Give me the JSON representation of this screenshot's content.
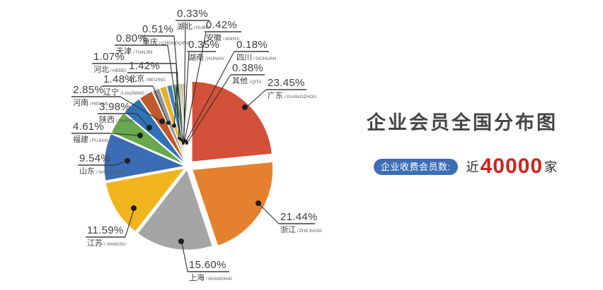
{
  "title": "企业会员全国分布图",
  "badge": {
    "label": "企业收费会员数:",
    "prefix": "近",
    "count": "40000",
    "suffix": "家",
    "badge_color": "#3d6eb5",
    "count_color": "#cc231b"
  },
  "chart_data": {
    "type": "pie",
    "title": "企业会员全国分布图",
    "unit": "%",
    "direction": "clockwise",
    "start_angle": "12-o-clock",
    "legend_position": "callout-labels",
    "series": [
      {
        "name": "广东",
        "pinyin": "GUANGZHOU",
        "value": 23.45,
        "color": "#d25138"
      },
      {
        "name": "浙江",
        "pinyin": "ZHEJIANG",
        "value": 21.44,
        "color": "#e5812e"
      },
      {
        "name": "上海",
        "pinyin": "SHANGHAI",
        "value": 15.6,
        "color": "#a5a5a5"
      },
      {
        "name": "江苏",
        "pinyin": "JIANGSU",
        "value": 11.59,
        "color": "#f0b41f"
      },
      {
        "name": "山东",
        "pinyin": "SHANDONG",
        "value": 9.54,
        "color": "#3c6cb4"
      },
      {
        "name": "福建",
        "pinyin": "FUJIAN",
        "value": 4.61,
        "color": "#68a84e"
      },
      {
        "name": "陕西",
        "pinyin": "SHANXI",
        "value": 3.98,
        "color": "#2f72b6"
      },
      {
        "name": "河南",
        "pinyin": "HENAN",
        "value": 2.85,
        "color": "#c05a2b"
      },
      {
        "name": "辽宁",
        "pinyin": "LIAONING",
        "value": 1.48,
        "color": "#969696"
      },
      {
        "name": "北京",
        "pinyin": "BEIJING",
        "value": 1.42,
        "color": "#e2b32b"
      },
      {
        "name": "河北",
        "pinyin": "HEBEI",
        "value": 1.07,
        "color": "#4a7cc6"
      },
      {
        "name": "天津",
        "pinyin": "TIANJIN",
        "value": 0.8,
        "color": "#6fae4b"
      },
      {
        "name": "重庆",
        "pinyin": "CHONGQING",
        "value": 0.51,
        "color": "#2e5795"
      },
      {
        "name": "湖北",
        "pinyin": "HUBEI",
        "value": 0.33,
        "color": "#5d8544"
      },
      {
        "name": "安徽",
        "pinyin": "ANHUI",
        "value": 0.42,
        "color": "#bf9734"
      },
      {
        "name": "湖南",
        "pinyin": "HUNAN",
        "value": 0.35,
        "color": "#8a8a8a"
      },
      {
        "name": "四川",
        "pinyin": "SICHUAN",
        "value": 0.18,
        "color": "#a85420"
      },
      {
        "name": "其他",
        "pinyin": "QITA",
        "value": 0.38,
        "color": "#d9c49c"
      }
    ]
  }
}
